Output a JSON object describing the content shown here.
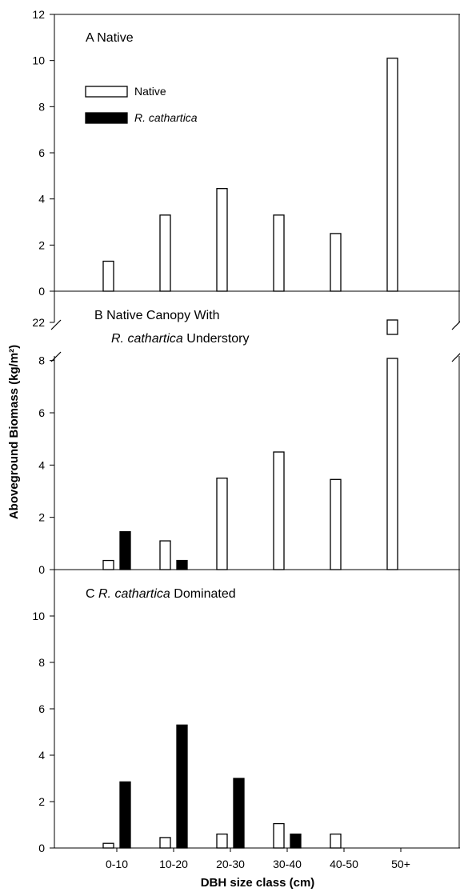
{
  "chart_data": {
    "type": "bar",
    "categories": [
      "0-10",
      "10-20",
      "20-30",
      "30-40",
      "40-50",
      "50+"
    ],
    "xlabel": "DBH size class (cm)",
    "ylabel": "Aboveground Biomass (kg/m²)",
    "legend": {
      "placement": "top-left of panel A",
      "entries": [
        {
          "label": "Native",
          "fill": "#ffffff"
        },
        {
          "label": "R. cathartica",
          "fill": "#000000"
        }
      ]
    },
    "panels": [
      {
        "id": "A",
        "letter": "A",
        "title_parts": [
          {
            "text": "Native",
            "italic": false
          }
        ],
        "ylim": [
          0,
          12
        ],
        "yticks": [
          0,
          2,
          4,
          6,
          8,
          10,
          12
        ],
        "series": [
          {
            "name": "Native",
            "color": "#ffffff",
            "values": [
              1.3,
              3.3,
              4.45,
              3.3,
              2.5,
              10.1
            ]
          },
          {
            "name": "R. cathartica",
            "color": "#000000",
            "values": [
              null,
              null,
              null,
              null,
              null,
              null
            ]
          }
        ]
      },
      {
        "id": "B",
        "letter": "B",
        "title_line1": "Native Canopy With",
        "title_line2_parts": [
          {
            "text": "R. cathartica",
            "italic": true
          },
          {
            "text": " Understory",
            "italic": false
          }
        ],
        "ylim": [
          0,
          9
        ],
        "axis_break": true,
        "break_tick": 22,
        "yticks": [
          0,
          2,
          4,
          6,
          8
        ],
        "series": [
          {
            "name": "Native",
            "color": "#ffffff",
            "values": [
              0.35,
              1.1,
              3.5,
              4.5,
              3.45,
              22
            ]
          },
          {
            "name": "R. cathartica",
            "color": "#000000",
            "values": [
              1.45,
              0.35,
              null,
              null,
              null,
              null
            ]
          }
        ]
      },
      {
        "id": "C",
        "letter": "C",
        "title_parts": [
          {
            "text": "R. cathartica",
            "italic": true
          },
          {
            "text": " Dominated",
            "italic": false
          }
        ],
        "ylim": [
          0,
          12
        ],
        "yticks": [
          0,
          2,
          4,
          6,
          8,
          10
        ],
        "series": [
          {
            "name": "Native",
            "color": "#ffffff",
            "values": [
              0.2,
              0.45,
              0.6,
              1.05,
              0.6,
              null
            ]
          },
          {
            "name": "R. cathartica",
            "color": "#000000",
            "values": [
              2.85,
              5.3,
              3.0,
              0.6,
              null,
              null
            ]
          }
        ]
      }
    ]
  }
}
